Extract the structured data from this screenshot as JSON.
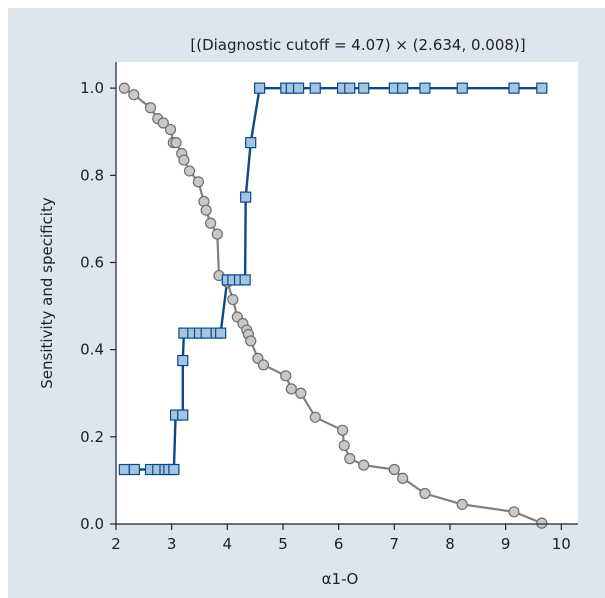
{
  "chart_data": {
    "type": "line",
    "title": "[(Diagnostic cutoff = 4.07) × (2.634, 0.008)]",
    "xlabel": "α1-O",
    "ylabel": "Sensitivity and specificity",
    "xlim": [
      2,
      10.3
    ],
    "ylim": [
      0,
      1.06
    ],
    "xticks": [
      "2",
      "3",
      "4",
      "5",
      "6",
      "7",
      "8",
      "9",
      "10"
    ],
    "yticks": [
      "0.0",
      "0.2",
      "0.4",
      "0.6",
      "0.8",
      "1.0"
    ],
    "grid": false,
    "series": [
      {
        "marker": "circle",
        "color": "#808080",
        "fill": "#c8c8c8",
        "points": [
          [
            2.15,
            1.0
          ],
          [
            2.32,
            0.985
          ],
          [
            2.62,
            0.955
          ],
          [
            2.75,
            0.93
          ],
          [
            2.85,
            0.92
          ],
          [
            2.98,
            0.905
          ],
          [
            3.03,
            0.875
          ],
          [
            3.08,
            0.875
          ],
          [
            3.18,
            0.85
          ],
          [
            3.22,
            0.835
          ],
          [
            3.32,
            0.81
          ],
          [
            3.48,
            0.785
          ],
          [
            3.58,
            0.74
          ],
          [
            3.62,
            0.72
          ],
          [
            3.7,
            0.69
          ],
          [
            3.82,
            0.665
          ],
          [
            3.85,
            0.57
          ],
          [
            4.0,
            0.555
          ],
          [
            4.1,
            0.515
          ],
          [
            4.18,
            0.475
          ],
          [
            4.28,
            0.46
          ],
          [
            4.35,
            0.445
          ],
          [
            4.38,
            0.435
          ],
          [
            4.42,
            0.42
          ],
          [
            4.55,
            0.38
          ],
          [
            4.65,
            0.365
          ],
          [
            5.05,
            0.34
          ],
          [
            5.15,
            0.31
          ],
          [
            5.32,
            0.3
          ],
          [
            5.58,
            0.245
          ],
          [
            6.07,
            0.215
          ],
          [
            6.1,
            0.18
          ],
          [
            6.2,
            0.15
          ],
          [
            6.45,
            0.135
          ],
          [
            7.0,
            0.125
          ],
          [
            7.15,
            0.105
          ],
          [
            7.55,
            0.07
          ],
          [
            8.22,
            0.045
          ],
          [
            9.15,
            0.028
          ],
          [
            9.65,
            0.002
          ]
        ]
      },
      {
        "marker": "square",
        "color": "#0a4a8a",
        "fill": "#a6c4e2",
        "points": [
          [
            2.15,
            0.125
          ],
          [
            2.33,
            0.125
          ],
          [
            2.62,
            0.125
          ],
          [
            2.75,
            0.125
          ],
          [
            2.88,
            0.125
          ],
          [
            2.95,
            0.125
          ],
          [
            3.04,
            0.125
          ],
          [
            3.07,
            0.25
          ],
          [
            3.2,
            0.25
          ],
          [
            3.2,
            0.375
          ],
          [
            3.22,
            0.438
          ],
          [
            3.38,
            0.438
          ],
          [
            3.5,
            0.438
          ],
          [
            3.62,
            0.438
          ],
          [
            3.8,
            0.438
          ],
          [
            3.88,
            0.438
          ],
          [
            4.0,
            0.56
          ],
          [
            4.1,
            0.56
          ],
          [
            4.22,
            0.56
          ],
          [
            4.32,
            0.56
          ],
          [
            4.33,
            0.75
          ],
          [
            4.42,
            0.875
          ],
          [
            4.58,
            1.0
          ],
          [
            5.05,
            1.0
          ],
          [
            5.15,
            1.0
          ],
          [
            5.28,
            1.0
          ],
          [
            5.58,
            1.0
          ],
          [
            6.07,
            1.0
          ],
          [
            6.2,
            1.0
          ],
          [
            6.45,
            1.0
          ],
          [
            7.0,
            1.0
          ],
          [
            7.15,
            1.0
          ],
          [
            7.55,
            1.0
          ],
          [
            8.22,
            1.0
          ],
          [
            9.15,
            1.0
          ],
          [
            9.65,
            1.0
          ]
        ]
      }
    ]
  }
}
